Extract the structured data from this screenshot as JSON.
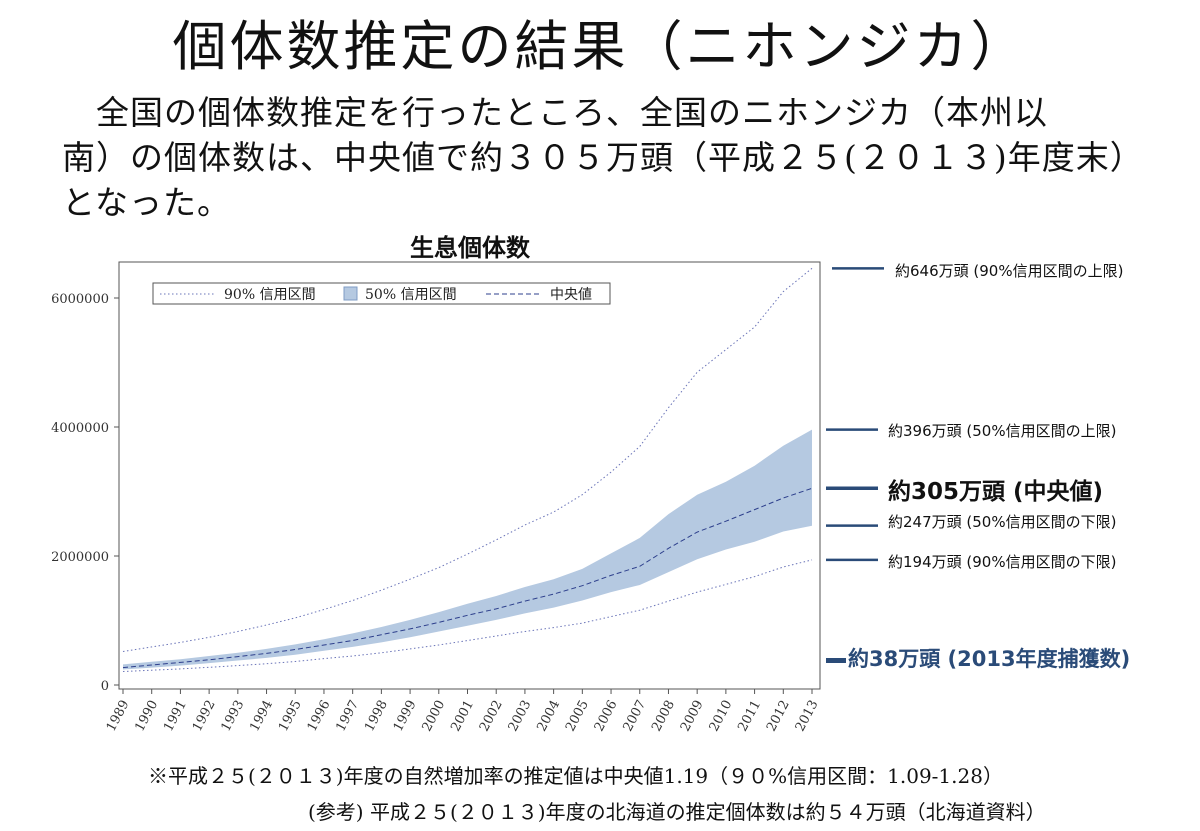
{
  "title": "個体数推定の結果（ニホンジカ）",
  "intro": {
    "line1": "全国の個体数推定を行ったところ、全国のニホンジカ（本州以",
    "line2": "南）の個体数は、中央値で約３０５万頭（平成２５(２０１３)年度末）",
    "line3": "となった。"
  },
  "chart_data": {
    "type": "area",
    "title": "生息個体数",
    "x": [
      1989,
      1990,
      1991,
      1992,
      1993,
      1994,
      1995,
      1996,
      1997,
      1998,
      1999,
      2000,
      2001,
      2002,
      2003,
      2004,
      2005,
      2006,
      2007,
      2008,
      2009,
      2010,
      2011,
      2012,
      2013
    ],
    "ylim": [
      0,
      6600000
    ],
    "yticks": [
      "0",
      "2000000",
      "4000000",
      "6000000"
    ],
    "xticks": [
      "1989",
      "1990",
      "1991",
      "1992",
      "1993",
      "1994",
      "1995",
      "1996",
      "1997",
      "1998",
      "1999",
      "2000",
      "2001",
      "2002",
      "2003",
      "2004",
      "2005",
      "2006",
      "2007",
      "2008",
      "2009",
      "2010",
      "2011",
      "2012",
      "2013"
    ],
    "legend": {
      "position": "top-left inside",
      "items": [
        "90% 信用区間",
        "50% 信用区間",
        "中央値"
      ]
    },
    "series": [
      {
        "name": "90% 信用区間",
        "style": "dotted",
        "color": "#6a74b8",
        "upper": [
          520000,
          590000,
          660000,
          740000,
          830000,
          930000,
          1040000,
          1170000,
          1310000,
          1470000,
          1640000,
          1820000,
          2030000,
          2250000,
          2480000,
          2680000,
          2950000,
          3300000,
          3700000,
          4300000,
          4850000,
          5200000,
          5550000,
          6100000,
          6460000
        ],
        "lower": [
          210000,
          230000,
          250000,
          275000,
          300000,
          330000,
          365000,
          410000,
          450000,
          500000,
          560000,
          620000,
          690000,
          760000,
          830000,
          890000,
          960000,
          1060000,
          1160000,
          1300000,
          1440000,
          1560000,
          1680000,
          1830000,
          1940000
        ]
      },
      {
        "name": "50% 信用区間",
        "style": "filled",
        "color": "#b5c9e1",
        "upper": [
          320000,
          360000,
          400000,
          450000,
          500000,
          560000,
          630000,
          710000,
          800000,
          900000,
          1010000,
          1130000,
          1260000,
          1380000,
          1520000,
          1640000,
          1800000,
          2040000,
          2280000,
          2650000,
          2950000,
          3150000,
          3400000,
          3710000,
          3960000
        ],
        "lower": [
          240000,
          270000,
          300000,
          340000,
          380000,
          420000,
          470000,
          530000,
          590000,
          660000,
          740000,
          830000,
          920000,
          1010000,
          1110000,
          1200000,
          1310000,
          1440000,
          1550000,
          1750000,
          1950000,
          2100000,
          2220000,
          2380000,
          2470000
        ]
      },
      {
        "name": "中央値",
        "style": "dashed",
        "color": "#2d3f8c",
        "values": [
          270000,
          310000,
          350000,
          390000,
          440000,
          490000,
          550000,
          620000,
          690000,
          780000,
          870000,
          970000,
          1080000,
          1180000,
          1300000,
          1410000,
          1540000,
          1700000,
          1840000,
          2120000,
          2370000,
          2540000,
          2720000,
          2900000,
          3050000
        ]
      }
    ]
  },
  "callouts": {
    "upper90": "約646万頭 (90%信用区間の上限)",
    "upper50": "約396万頭 (50%信用区間の上限)",
    "median": "約305万頭 (中央値)",
    "lower50": "約247万頭 (50%信用区間の下限)",
    "lower90": "約194万頭 (90%信用区間の下限)",
    "capture": "約38万頭 (2013年度捕獲数)",
    "capture_value": 380000,
    "line_color": "#2a4b78"
  },
  "footnotes": {
    "note1": "※平成２５(２０１３)年度の自然増加率の推定値は中央値1.19（９０%信用区間：1.09-1.28）",
    "note2": "(参考) 平成２５(２０１３)年度の北海道の推定個体数は約５４万頭（北海道資料）"
  }
}
